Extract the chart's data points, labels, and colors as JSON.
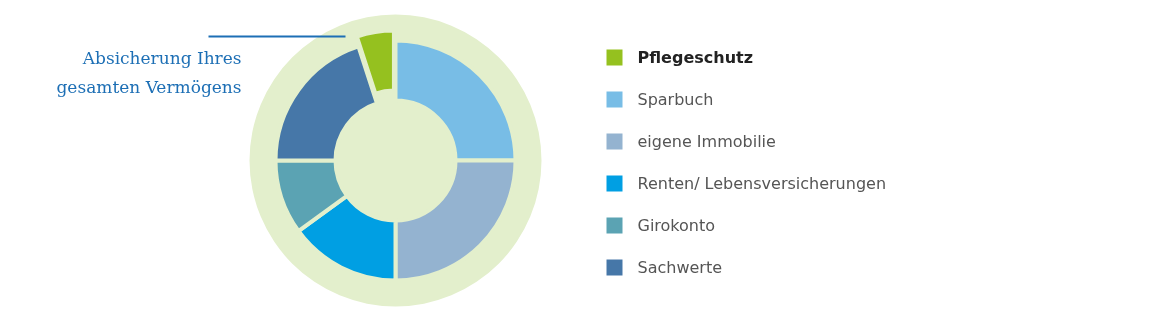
{
  "chart_data": {
    "type": "donut",
    "categories": [
      "Pflegeschutz",
      "Sparbuch",
      "eigene Immobilie",
      "Renten/ Lebensversicherungen",
      "Girokonto",
      "Sachwerte"
    ],
    "values": [
      5,
      25,
      25,
      15,
      10,
      20
    ],
    "colors": [
      "#95c11f",
      "#78bde6",
      "#94b3d0",
      "#009fe3",
      "#5ba3b3",
      "#4677a8"
    ],
    "legend": "right",
    "annotations": [
      "Absicherung Ihres\ngesamten Vermögens"
    ]
  }
}
